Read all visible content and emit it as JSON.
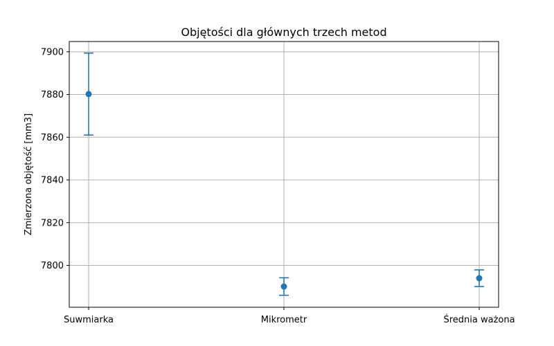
{
  "chart_data": {
    "type": "scatter",
    "title": "Objętości dla głównych trzech metod",
    "xlabel": "",
    "ylabel": "Zmierzona objętość [mm3]",
    "categories": [
      "Suwmiarka",
      "Mikrometr",
      "Średnia ważona"
    ],
    "series": [
      {
        "values": [
          7880.2,
          7790.1,
          7794.0
        ],
        "errors": [
          19.2,
          4.1,
          3.9
        ]
      }
    ],
    "ylim": [
      7780.4,
      7904.8
    ],
    "yticks": [
      "7800",
      "7820",
      "7840",
      "7860",
      "7880",
      "7900"
    ],
    "grid": true,
    "error_bars": true,
    "colors": {
      "series": "#1f77b4",
      "grid": "#b0b0b0",
      "axes": "#000000"
    }
  }
}
